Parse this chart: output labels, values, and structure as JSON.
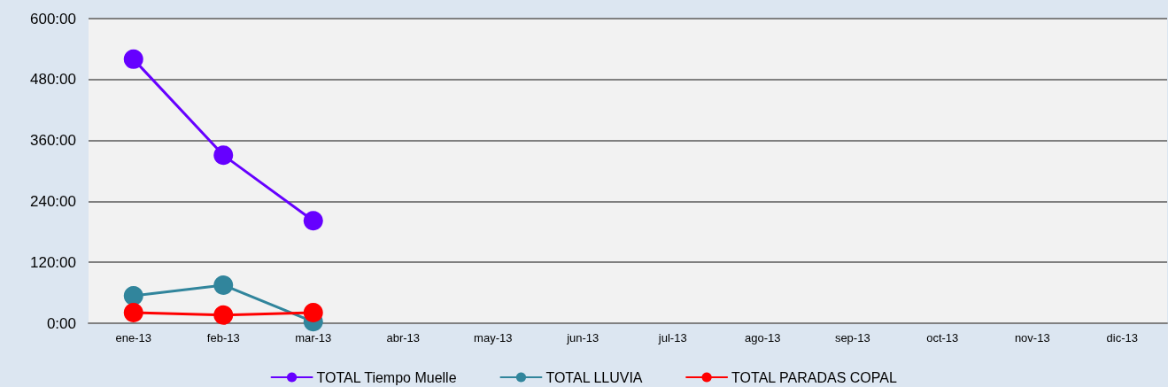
{
  "chart_data": {
    "type": "line",
    "categories": [
      "ene-13",
      "feb-13",
      "mar-13",
      "abr-13",
      "may-13",
      "jun-13",
      "jul-13",
      "ago-13",
      "sep-13",
      "oct-13",
      "nov-13",
      "dic-13"
    ],
    "series": [
      {
        "name": "TOTAL Tiempo Muelle",
        "color": "#6600ff",
        "values": [
          520,
          331,
          202,
          null,
          null,
          null,
          null,
          null,
          null,
          null,
          null,
          null
        ]
      },
      {
        "name": "TOTAL LLUVIA",
        "color": "#31859c",
        "values": [
          54,
          75,
          3,
          null,
          null,
          null,
          null,
          null,
          null,
          null,
          null,
          null
        ]
      },
      {
        "name": "TOTAL PARADAS COPAL",
        "color": "#ff0000",
        "values": [
          21,
          16,
          21,
          null,
          null,
          null,
          null,
          null,
          null,
          null,
          null,
          null
        ]
      }
    ],
    "ylim": [
      0,
      600
    ],
    "yticks": [
      {
        "value": 0,
        "label": "0:00"
      },
      {
        "value": 120,
        "label": "120:00"
      },
      {
        "value": 240,
        "label": "240:00"
      },
      {
        "value": 360,
        "label": "360:00"
      },
      {
        "value": 480,
        "label": "480:00"
      },
      {
        "value": 600,
        "label": "600:00"
      }
    ],
    "grid": "y",
    "legend": "bottom",
    "marker": "circle",
    "line_style": "solid"
  }
}
